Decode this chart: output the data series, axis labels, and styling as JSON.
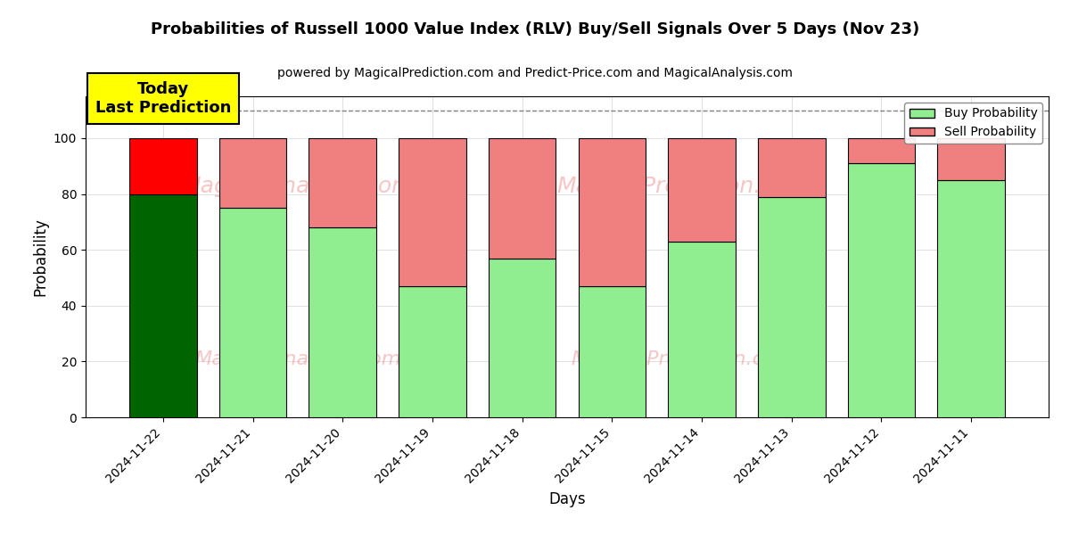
{
  "title": "Probabilities of Russell 1000 Value Index (RLV) Buy/Sell Signals Over 5 Days (Nov 23)",
  "subtitle": "powered by MagicalPrediction.com and Predict-Price.com and MagicalAnalysis.com",
  "xlabel": "Days",
  "ylabel": "Probability",
  "dates": [
    "2024-11-22",
    "2024-11-21",
    "2024-11-20",
    "2024-11-19",
    "2024-11-18",
    "2024-11-15",
    "2024-11-14",
    "2024-11-13",
    "2024-11-12",
    "2024-11-11"
  ],
  "buy_values": [
    80,
    75,
    68,
    47,
    57,
    47,
    63,
    79,
    91,
    85
  ],
  "sell_values": [
    20,
    25,
    32,
    53,
    43,
    53,
    37,
    21,
    9,
    15
  ],
  "today_buy_color": "#006400",
  "today_sell_color": "#FF0000",
  "regular_buy_color": "#90EE90",
  "regular_sell_color": "#F08080",
  "bar_edge_color": "#000000",
  "ylim": [
    0,
    115
  ],
  "yticks": [
    0,
    20,
    40,
    60,
    80,
    100
  ],
  "dashed_line_y": 110,
  "watermark_color": "#F08080",
  "annotation_text": "Today\nLast Prediction",
  "annotation_bg": "#FFFF00",
  "figsize": [
    12,
    6
  ],
  "dpi": 100
}
